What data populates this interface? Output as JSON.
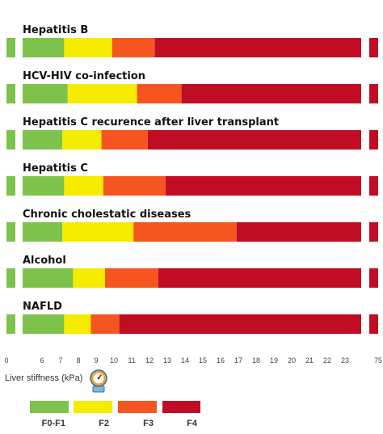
{
  "chart_data": {
    "type": "bar",
    "orientation": "horizontal",
    "stacked": true,
    "xlabel": "Liver stiffness (kPa)",
    "x_ticks": [
      "0",
      "6",
      "7",
      "8",
      "9",
      "10",
      "11",
      "12",
      "13",
      "14",
      "15",
      "16",
      "17",
      "18",
      "19",
      "20",
      "21",
      "22",
      "23",
      "75"
    ],
    "x_axis_broken": true,
    "legend_position": "bottom-left",
    "grid": false,
    "colors": {
      "F0-F1": "#7dc24b",
      "F2": "#f5ec00",
      "F3": "#f5551f",
      "F4": "#c00d23"
    },
    "legend": [
      "F0-F1",
      "F2",
      "F3",
      "F4"
    ],
    "categories": [
      "Hepatitis B",
      "HCV-HIV co-infection",
      "Hepatitis C recurence after liver transplant",
      "Hepatitis  C",
      "Chronic cholestatic diseases",
      "Alcohol",
      "NAFLD"
    ],
    "series": [
      {
        "name": "F0-F1",
        "start": [
          0,
          0,
          0,
          0,
          0,
          0,
          0
        ],
        "end": [
          7.2,
          7.4,
          7.1,
          7.2,
          7.1,
          7.7,
          7.2
        ]
      },
      {
        "name": "F2",
        "start": [
          7.2,
          7.4,
          7.1,
          7.2,
          7.1,
          7.7,
          7.2
        ],
        "end": [
          9.9,
          11.3,
          9.3,
          9.4,
          11.1,
          9.5,
          8.7
        ]
      },
      {
        "name": "F3",
        "start": [
          9.9,
          11.3,
          9.3,
          9.4,
          11.1,
          9.5,
          8.7
        ],
        "end": [
          12.3,
          13.8,
          11.9,
          12.9,
          16.9,
          12.5,
          10.3
        ]
      },
      {
        "name": "F4",
        "start": [
          12.3,
          13.8,
          11.9,
          12.9,
          16.9,
          12.5,
          10.3
        ],
        "end": [
          75,
          75,
          75,
          75,
          75,
          75,
          75
        ]
      }
    ]
  }
}
